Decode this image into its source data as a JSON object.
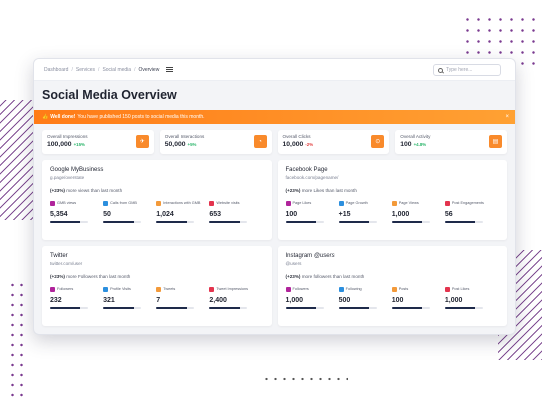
{
  "breadcrumb": [
    "Dashboard",
    "Services",
    "Social media",
    "Overview"
  ],
  "search": {
    "placeholder": "Type here..."
  },
  "page_title": "Social Media Overview",
  "banner": {
    "strong": "Well done!",
    "text": "You have published 150 posts to social media this month.",
    "close": "×"
  },
  "stats": [
    {
      "label": "Overall Impressions",
      "value": "100,000",
      "delta": "+15%",
      "trend": "up",
      "icon": "rocket-icon",
      "glyph": "✈"
    },
    {
      "label": "Overall Interactions",
      "value": "50,000",
      "delta": "+5%",
      "trend": "up",
      "icon": "pie-icon",
      "glyph": "◔"
    },
    {
      "label": "Overall Clicks",
      "value": "10,000",
      "delta": "-2%",
      "trend": "down",
      "icon": "target-icon",
      "glyph": "⊙"
    },
    {
      "label": "Overall Activity",
      "value": "100",
      "delta": "+4.8%",
      "trend": "up",
      "icon": "activity-icon",
      "glyph": "▤"
    }
  ],
  "cards": [
    {
      "title": "Google MyBusiness",
      "title_em": "",
      "subtitle": "g.page/overstate",
      "note_strong": "(+23%)",
      "note": "more views than last month",
      "metrics": [
        {
          "label": "GMB views",
          "value": "5,354",
          "color": "purple",
          "progress": 0.8
        },
        {
          "label": "Calls from GMB",
          "value": "50",
          "color": "blue",
          "progress": 0.8
        },
        {
          "label": "Interactions with GMB",
          "value": "1,024",
          "color": "orange",
          "progress": 0.8
        },
        {
          "label": "Website visits",
          "value": "653",
          "color": "red",
          "progress": 0.8
        }
      ]
    },
    {
      "title": "Facebook Page",
      "title_em": "",
      "subtitle": "facebook.com/pagename/",
      "note_strong": "(+23%)",
      "note": "more Likes than last month",
      "metrics": [
        {
          "label": "Page Likes",
          "value": "100",
          "color": "purple",
          "progress": 0.8
        },
        {
          "label": "Page Growth",
          "value": "+15",
          "color": "blue",
          "progress": 0.8
        },
        {
          "label": "Page Views",
          "value": "1,000",
          "color": "orange",
          "progress": 0.8
        },
        {
          "label": "Post Engagements",
          "value": "56",
          "color": "red",
          "progress": 0.8
        }
      ]
    },
    {
      "title": "Twitter",
      "title_em": "",
      "subtitle": "twitter.com/user",
      "note_strong": "(+23%)",
      "note": "more Followers than last month",
      "metrics": [
        {
          "label": "Followers",
          "value": "232",
          "color": "purple",
          "progress": 0.8
        },
        {
          "label": "Profile Visits",
          "value": "321",
          "color": "blue",
          "progress": 0.8
        },
        {
          "label": "Tweets",
          "value": "7",
          "color": "orange",
          "progress": 0.8
        },
        {
          "label": "Tweet Impressions",
          "value": "2,400",
          "color": "red",
          "progress": 0.8
        }
      ]
    },
    {
      "title": "Instagram ",
      "title_em": "@users",
      "subtitle": "@users",
      "note_strong": "(+23%)",
      "note": "more followers than last month",
      "metrics": [
        {
          "label": "Followers",
          "value": "1,000",
          "color": "purple",
          "progress": 0.8
        },
        {
          "label": "Following",
          "value": "500",
          "color": "blue",
          "progress": 0.8
        },
        {
          "label": "Posts",
          "value": "100",
          "color": "orange",
          "progress": 0.8
        },
        {
          "label": "Post Likes",
          "value": "1,000",
          "color": "red",
          "progress": 0.8
        }
      ]
    }
  ]
}
